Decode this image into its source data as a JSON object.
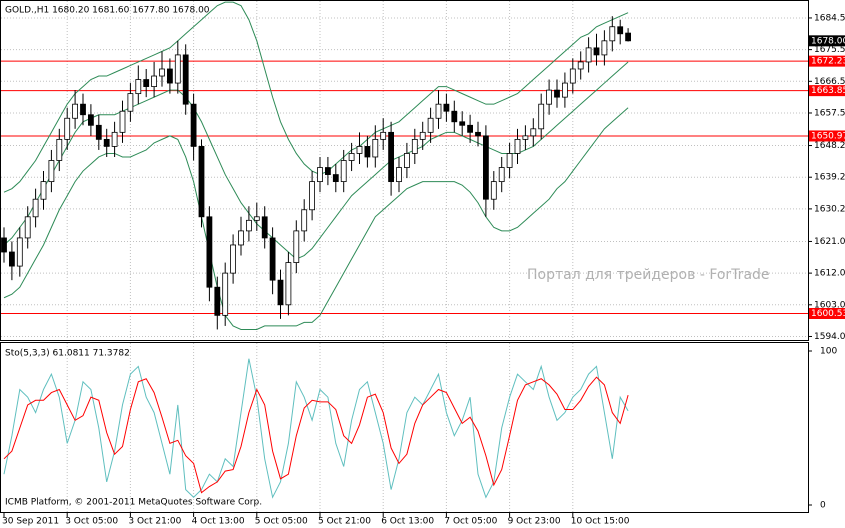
{
  "chart_data": {
    "type": "candlestick",
    "header": "GOLD.,H1 1680.20 1681.60 1677.80 1678.00",
    "watermark": "Портал для трейдеров - ForTrade",
    "copyright": "ICMB Platform, © 2001-2011 MetaQuotes Software Corp.",
    "categories": [
      "30 Sep 2011",
      null,
      null,
      null,
      null,
      null,
      null,
      null,
      "3 Oct 05:00",
      null,
      null,
      null,
      null,
      null,
      null,
      null,
      "3 Oct 21:00",
      null,
      null,
      null,
      null,
      null,
      null,
      null,
      "4 Oct 13:00",
      null,
      null,
      null,
      null,
      null,
      null,
      null,
      "5 Oct 05:00",
      null,
      null,
      null,
      null,
      null,
      null,
      null,
      "5 Oct 21:00",
      null,
      null,
      null,
      null,
      null,
      null,
      null,
      "6 Oct 13:00",
      null,
      null,
      null,
      null,
      null,
      null,
      null,
      "7 Oct 05:00",
      null,
      null,
      null,
      null,
      null,
      null,
      null,
      "9 Oct 23:00",
      null,
      null,
      null,
      null,
      null,
      null,
      null,
      "10 Oct 15:00",
      null,
      null,
      null,
      null,
      null,
      null,
      null
    ],
    "open": [
      1622,
      1618,
      1614,
      1622,
      1628,
      1633,
      1638,
      1644,
      1650,
      1656,
      1660,
      1657,
      1654,
      1650,
      1648,
      1652,
      1658,
      1663,
      1667,
      1665,
      1668,
      1670,
      1666,
      1674,
      1660,
      1648,
      1628,
      1608,
      1600,
      1612,
      1620,
      1624,
      1627,
      1628,
      1622,
      1610,
      1603,
      1615,
      1624,
      1630,
      1638,
      1642,
      1640,
      1638,
      1644,
      1646,
      1648,
      1645,
      1650,
      1652,
      1638,
      1642,
      1646,
      1650,
      1652,
      1656,
      1660,
      1658,
      1655,
      1654,
      1652,
      1651,
      1633,
      1638,
      1642,
      1646,
      1650,
      1651,
      1653,
      1660,
      1664,
      1662,
      1666,
      1670,
      1672,
      1676,
      1674,
      1678,
      1682,
      1680.2
    ],
    "high": [
      1625,
      1621,
      1625,
      1631,
      1636,
      1641,
      1647,
      1653,
      1659,
      1664,
      1663,
      1660,
      1657,
      1653,
      1655,
      1661,
      1666,
      1671,
      1670,
      1672,
      1675,
      1673,
      1678,
      1677,
      1663,
      1650,
      1631,
      1611,
      1615,
      1623,
      1628,
      1631,
      1632,
      1631,
      1625,
      1613,
      1618,
      1627,
      1633,
      1641,
      1645,
      1645,
      1643,
      1647,
      1649,
      1652,
      1651,
      1654,
      1656,
      1655,
      1645,
      1649,
      1653,
      1655,
      1659,
      1664,
      1663,
      1661,
      1658,
      1657,
      1655,
      1654,
      1641,
      1645,
      1649,
      1653,
      1654,
      1656,
      1663,
      1667,
      1667,
      1669,
      1673,
      1675,
      1679,
      1680,
      1681,
      1685,
      1684,
      1681.6
    ],
    "low": [
      1615,
      1610,
      1611,
      1619,
      1625,
      1630,
      1635,
      1641,
      1647,
      1653,
      1654,
      1651,
      1647,
      1645,
      1645,
      1649,
      1655,
      1660,
      1662,
      1662,
      1665,
      1663,
      1663,
      1657,
      1644,
      1625,
      1604,
      1596,
      1597,
      1609,
      1617,
      1621,
      1624,
      1619,
      1606,
      1599,
      1600,
      1612,
      1621,
      1627,
      1635,
      1637,
      1635,
      1635,
      1641,
      1643,
      1642,
      1642,
      1647,
      1634,
      1635,
      1639,
      1643,
      1647,
      1649,
      1653,
      1655,
      1652,
      1651,
      1649,
      1648,
      1628,
      1630,
      1635,
      1639,
      1643,
      1647,
      1648,
      1650,
      1657,
      1659,
      1659,
      1663,
      1667,
      1669,
      1671,
      1671,
      1675,
      1677,
      1677.8
    ],
    "close": [
      1618,
      1614,
      1622,
      1628,
      1633,
      1638,
      1644,
      1650,
      1656,
      1660,
      1657,
      1654,
      1650,
      1648,
      1652,
      1658,
      1663,
      1667,
      1665,
      1668,
      1670,
      1666,
      1674,
      1660,
      1648,
      1628,
      1608,
      1600,
      1612,
      1620,
      1624,
      1627,
      1628,
      1622,
      1610,
      1603,
      1615,
      1624,
      1630,
      1638,
      1642,
      1640,
      1638,
      1644,
      1646,
      1648,
      1645,
      1650,
      1652,
      1638,
      1642,
      1646,
      1650,
      1652,
      1656,
      1660,
      1658,
      1655,
      1654,
      1652,
      1651,
      1633,
      1638,
      1642,
      1646,
      1650,
      1651,
      1653,
      1660,
      1664,
      1662,
      1666,
      1670,
      1672,
      1676,
      1674,
      1678,
      1682,
      1680,
      1678
    ],
    "up_color": "#ffffff",
    "down_color": "#000000",
    "candle_edge": "#000000",
    "bands": [
      {
        "color": "#2e8b57",
        "values": [
          1635,
          1636,
          1638,
          1641,
          1644,
          1648,
          1652,
          1656,
          1660,
          1663,
          1665,
          1667,
          1668,
          1668,
          1669,
          1670,
          1671,
          1672,
          1673,
          1674,
          1675,
          1676,
          1678,
          1680,
          1682,
          1684,
          1686,
          1688,
          1689,
          1689,
          1688,
          1684,
          1678,
          1670,
          1662,
          1655,
          1650,
          1646,
          1643,
          1641,
          1640,
          1641,
          1643,
          1645,
          1647,
          1648,
          1650,
          1652,
          1653,
          1654,
          1655,
          1657,
          1659,
          1661,
          1663,
          1665,
          1665,
          1664,
          1663,
          1662,
          1661,
          1660,
          1660,
          1661,
          1662,
          1663,
          1665,
          1667,
          1669,
          1671,
          1673,
          1675,
          1677,
          1679,
          1680,
          1682,
          1683,
          1684,
          1685,
          1686
        ]
      },
      {
        "color": "#2e8b57",
        "values": [
          1620,
          1622,
          1625,
          1628,
          1632,
          1636,
          1640,
          1644,
          1648,
          1652,
          1655,
          1656,
          1657,
          1657,
          1657,
          1658,
          1659,
          1660,
          1661,
          1662,
          1663,
          1664,
          1664,
          1662,
          1659,
          1655,
          1650,
          1645,
          1640,
          1636,
          1632,
          1629,
          1626,
          1624,
          1622,
          1620,
          1618,
          1616,
          1617,
          1619,
          1622,
          1625,
          1628,
          1631,
          1634,
          1636,
          1638,
          1640,
          1642,
          1644,
          1645,
          1646,
          1647,
          1648,
          1650,
          1651,
          1652,
          1652,
          1651,
          1650,
          1649,
          1648,
          1647,
          1646,
          1646,
          1646,
          1647,
          1648,
          1650,
          1652,
          1654,
          1656,
          1658,
          1660,
          1662,
          1664,
          1666,
          1668,
          1670,
          1672
        ]
      },
      {
        "color": "#2e8b57",
        "values": [
          1605,
          1606,
          1608,
          1612,
          1616,
          1620,
          1625,
          1630,
          1634,
          1638,
          1641,
          1643,
          1645,
          1646,
          1646,
          1645,
          1645,
          1646,
          1647,
          1649,
          1650,
          1651,
          1650,
          1645,
          1638,
          1628,
          1618,
          1608,
          1600,
          1597,
          1596,
          1596,
          1596,
          1597,
          1597,
          1597,
          1597,
          1597,
          1598,
          1598,
          1600,
          1604,
          1608,
          1612,
          1616,
          1620,
          1624,
          1628,
          1630,
          1632,
          1634,
          1636,
          1637,
          1638,
          1638,
          1638,
          1638,
          1638,
          1637,
          1635,
          1632,
          1628,
          1625,
          1624,
          1624,
          1625,
          1627,
          1629,
          1631,
          1633,
          1636,
          1638,
          1641,
          1644,
          1647,
          1650,
          1653,
          1655,
          1657,
          1659
        ]
      }
    ],
    "levels": [
      1672.23,
      1663.85,
      1650.97,
      1600.53
    ],
    "level_color": "#ff0000",
    "price_label": {
      "value": 1678,
      "label": "1678.00"
    },
    "ylim": [
      1593,
      1689.6
    ],
    "yticks": [
      {
        "value": 1684.5,
        "label": "1684.50"
      },
      {
        "value": 1675.5,
        "label": "1675.50"
      },
      {
        "value": 1666.5,
        "label": "1666.50"
      },
      {
        "value": 1657.5,
        "label": "1657.50"
      },
      1648.25,
      1639.25,
      1630.25,
      {
        "value": 1621,
        "label": "1621.00"
      },
      {
        "value": 1612,
        "label": "1612.00"
      },
      {
        "value": 1603,
        "label": "1603.00"
      },
      {
        "value": 1594,
        "label": "1594.00"
      }
    ],
    "grid": true,
    "indicator": {
      "type": "line",
      "header": "Sto(5,3,3) 61.0811 71.3782",
      "ylim": [
        -5.2,
        105.2
      ],
      "yticks": [
        100,
        0
      ],
      "series": [
        {
          "color": "#5fbfbf",
          "values": [
            20,
            45,
            75,
            70,
            60,
            75,
            85,
            70,
            40,
            55,
            80,
            75,
            50,
            15,
            35,
            65,
            85,
            90,
            70,
            60,
            40,
            20,
            65,
            10,
            5,
            10,
            20,
            15,
            30,
            25,
            60,
            95,
            70,
            30,
            5,
            15,
            40,
            80,
            70,
            55,
            75,
            70,
            40,
            25,
            55,
            75,
            80,
            60,
            40,
            10,
            30,
            60,
            70,
            65,
            75,
            85,
            60,
            45,
            55,
            70,
            20,
            5,
            15,
            50,
            70,
            85,
            80,
            75,
            90,
            70,
            55,
            60,
            70,
            75,
            85,
            90,
            60,
            30,
            70,
            61.0811
          ]
        },
        {
          "color": "#ff0000",
          "values": [
            30,
            35,
            50,
            65,
            68,
            68,
            73,
            75,
            65,
            55,
            58,
            70,
            68,
            47,
            33,
            38,
            62,
            80,
            82,
            73,
            57,
            40,
            42,
            32,
            27,
            8,
            12,
            15,
            22,
            23,
            38,
            60,
            75,
            65,
            35,
            17,
            20,
            45,
            63,
            68,
            67,
            67,
            62,
            45,
            40,
            52,
            70,
            72,
            60,
            37,
            27,
            33,
            53,
            65,
            70,
            75,
            73,
            63,
            53,
            57,
            48,
            32,
            13,
            23,
            45,
            68,
            78,
            80,
            82,
            78,
            72,
            62,
            62,
            68,
            77,
            83,
            78,
            60,
            53,
            71.3782
          ]
        }
      ]
    }
  }
}
